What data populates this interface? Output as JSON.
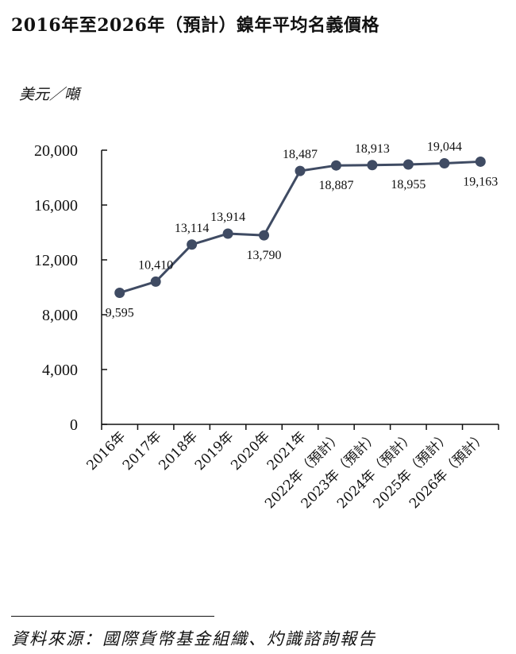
{
  "title": "2016年至2026年（預計）鎳年平均名義價格",
  "unit_label": "美元／噸",
  "source": "資料來源：國際貨幣基金組織、灼識諮詢報告",
  "colors": {
    "line": "#3f4b63",
    "marker": "#3f4b63",
    "axis": "#111111"
  },
  "chart_data": {
    "type": "line",
    "title": "2016年至2026年（預計）鎳年平均名義價格",
    "ylabel": "美元／噸",
    "xlabel": "",
    "categories": [
      "2016年",
      "2017年",
      "2018年",
      "2019年",
      "2020年",
      "2021年",
      "2022年（預計）",
      "2023年（預計）",
      "2024年（預計）",
      "2025年（預計）",
      "2026年（預計）"
    ],
    "values": [
      9595,
      10410,
      13114,
      13914,
      13790,
      18487,
      18887,
      18913,
      18955,
      19044,
      19163
    ],
    "value_labels": [
      "9,595",
      "10,410",
      "13,114",
      "13,914",
      "13,790",
      "18,487",
      "18,887",
      "18,913",
      "18,955",
      "19,044",
      "19,163"
    ],
    "label_positions": [
      "below",
      "above",
      "above",
      "above",
      "below",
      "above",
      "below",
      "above",
      "below",
      "above",
      "below"
    ],
    "ylim": [
      0,
      20000
    ],
    "yticks": [
      0,
      4000,
      8000,
      12000,
      16000,
      20000
    ],
    "ytick_labels": [
      "0",
      "4,000",
      "8,000",
      "12,000",
      "16,000",
      "20,000"
    ],
    "grid": false,
    "legend": "none"
  }
}
